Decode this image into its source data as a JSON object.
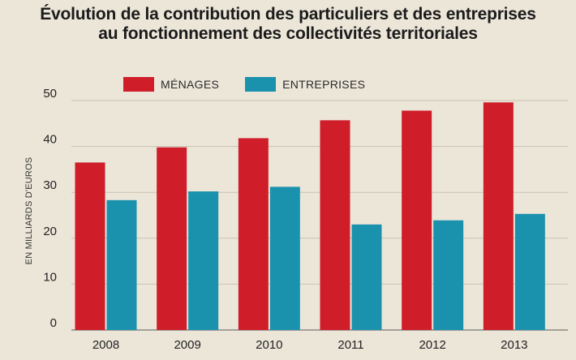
{
  "chart_data": {
    "type": "bar",
    "title_lines": [
      "Évolution de la contribution des particuliers et des entreprises",
      "au fonctionnement des collectivités territoriales"
    ],
    "ylabel": "EN MILLIARDS D'EUROS",
    "xlabel": "",
    "ylim": [
      0,
      50
    ],
    "yticks": [
      0,
      10,
      20,
      30,
      40,
      50
    ],
    "grid": true,
    "legend_position": "top",
    "categories": [
      "2008",
      "2009",
      "2010",
      "2011",
      "2012",
      "2013"
    ],
    "series": [
      {
        "name": "MÉNAGES",
        "color": "#cf1d2a",
        "values": [
          36.5,
          39.8,
          41.8,
          45.7,
          47.8,
          49.6
        ]
      },
      {
        "name": "ENTREPRISES",
        "color": "#1a92ad",
        "values": [
          28.3,
          30.2,
          31.2,
          23.0,
          23.9,
          25.3
        ]
      }
    ]
  }
}
